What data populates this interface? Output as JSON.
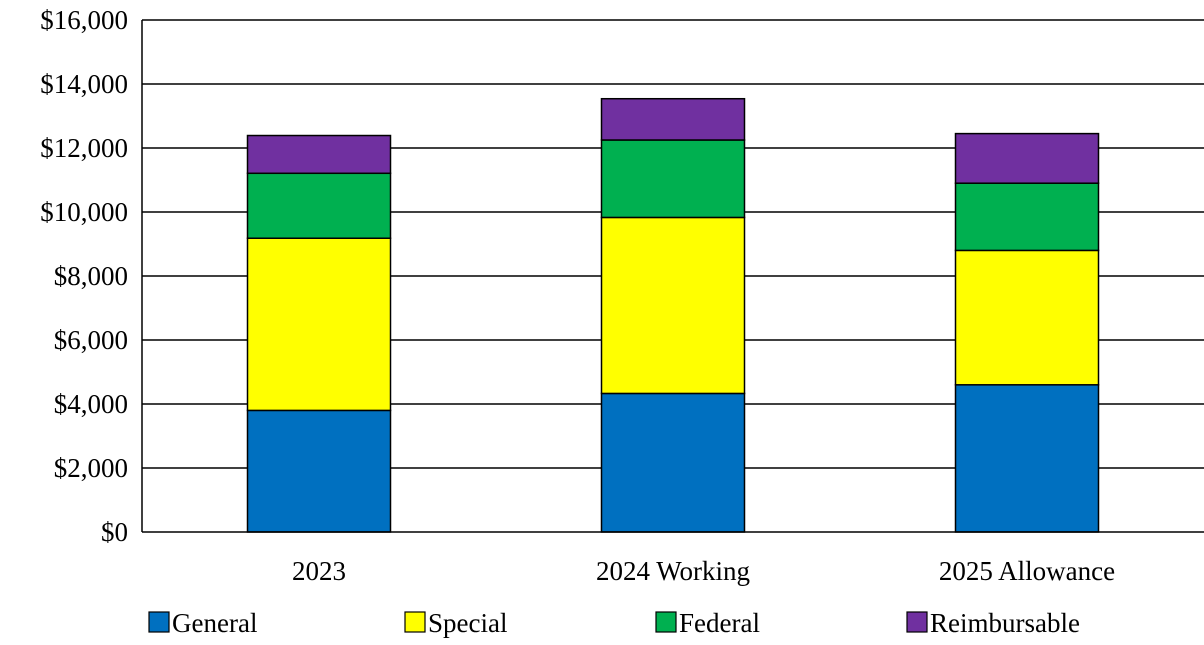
{
  "chart_data": {
    "type": "bar",
    "stacked": true,
    "categories": [
      "2023",
      "2024 Working",
      "2025 Allowance"
    ],
    "series": [
      {
        "name": "General",
        "color": "#0070C0",
        "values": [
          3800,
          4330,
          4600
        ]
      },
      {
        "name": "Special",
        "color": "#FFFF00",
        "values": [
          5380,
          5500,
          4200
        ]
      },
      {
        "name": "Federal",
        "color": "#00B050",
        "values": [
          2030,
          2420,
          2100
        ]
      },
      {
        "name": "Reimbursable",
        "color": "#7030A0",
        "values": [
          1180,
          1290,
          1550
        ]
      }
    ],
    "ylim": [
      0,
      16000
    ],
    "yticks": [
      0,
      2000,
      4000,
      6000,
      8000,
      10000,
      12000,
      14000,
      16000
    ],
    "ytick_labels": [
      "$0",
      "$2,000",
      "$4,000",
      "$6,000",
      "$8,000",
      "$10,000",
      "$12,000",
      "$14,000",
      "$16,000"
    ],
    "grid": true,
    "legend_position": "bottom",
    "title": "",
    "xlabel": "",
    "ylabel": ""
  }
}
